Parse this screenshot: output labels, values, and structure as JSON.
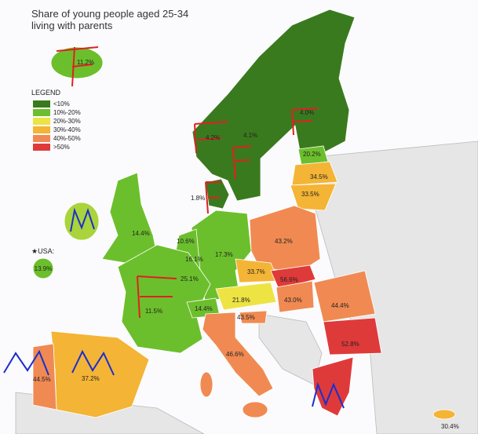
{
  "title": [
    "Share of young people aged 25-34",
    "living with parents"
  ],
  "legend": {
    "title": "LEGEND",
    "items": [
      {
        "label": "<10%",
        "color": "#3a7a1e"
      },
      {
        "label": "10%-20%",
        "color": "#6cbf2c"
      },
      {
        "label": "20%-30%",
        "color": "#ede443"
      },
      {
        "label": "30%-40%",
        "color": "#f4b435"
      },
      {
        "label": "40%-50%",
        "color": "#f08a52"
      },
      {
        "label": ">50%",
        "color": "#df3a3a"
      }
    ]
  },
  "usa": {
    "label": "★USA:",
    "value": "13.9%"
  },
  "regions": [
    {
      "name": "Iceland",
      "label": "11.2%"
    },
    {
      "name": "Norway",
      "label": "4.2%"
    },
    {
      "name": "Sweden",
      "label": "4.1%"
    },
    {
      "name": "Finland",
      "label": "4.0%"
    },
    {
      "name": "Denmark",
      "label": "1.8%"
    },
    {
      "name": "Estonia",
      "label": "20.2%"
    },
    {
      "name": "Latvia",
      "label": "34.5%"
    },
    {
      "name": "Lithuania",
      "label": "33.5%"
    },
    {
      "name": "United Kingdom",
      "label": "14.4%"
    },
    {
      "name": "Netherlands",
      "label": "10.6%"
    },
    {
      "name": "Belgium",
      "label": "16.1%"
    },
    {
      "name": "Germany",
      "label": "17.3%"
    },
    {
      "name": "Poland",
      "label": "43.2%"
    },
    {
      "name": "Czechia",
      "label": "33.7%"
    },
    {
      "name": "Slovakia",
      "label": "56.6%"
    },
    {
      "name": "Hungary",
      "label": "43.0%"
    },
    {
      "name": "Austria",
      "label": "21.8%"
    },
    {
      "name": "Luxembourg",
      "label": "25.1%"
    },
    {
      "name": "Switzerland",
      "label": "14.4%"
    },
    {
      "name": "France",
      "label": "11.5%"
    },
    {
      "name": "Slovenia",
      "label": "43.5%"
    },
    {
      "name": "Romania",
      "label": "44.4%"
    },
    {
      "name": "Bulgaria",
      "label": "52.8%"
    },
    {
      "name": "Italy",
      "label": "46.6%"
    },
    {
      "name": "Spain",
      "label": "37.2%"
    },
    {
      "name": "Portugal",
      "label": "44.5%"
    },
    {
      "name": "Cyprus",
      "label": "30.4%"
    }
  ]
}
